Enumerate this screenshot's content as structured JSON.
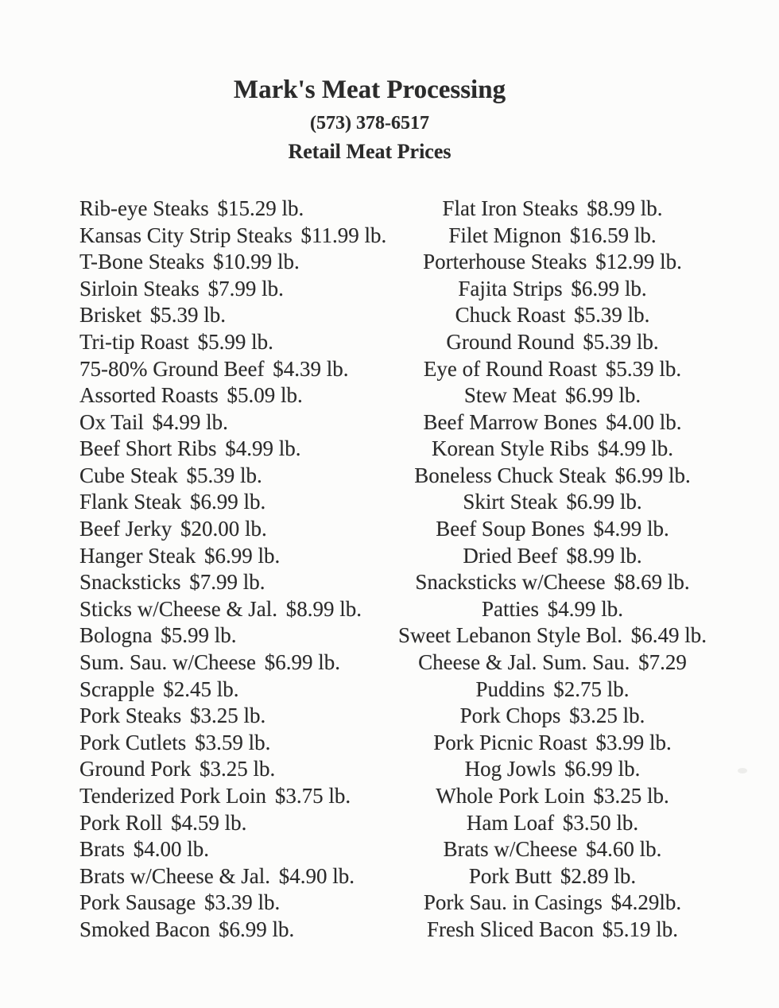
{
  "header": {
    "business_name": "Mark's Meat Processing",
    "phone": "(573) 378-6517",
    "subtitle": "Retail Meat Prices"
  },
  "price_list": {
    "left_column": [
      {
        "item": "Rib-eye Steaks",
        "price": "$15.29 lb."
      },
      {
        "item": "Kansas City Strip Steaks",
        "price": "$11.99 lb."
      },
      {
        "item": "T-Bone Steaks",
        "price": "$10.99 lb."
      },
      {
        "item": "Sirloin Steaks",
        "price": "$7.99 lb."
      },
      {
        "item": "Brisket",
        "price": "$5.39 lb."
      },
      {
        "item": "Tri-tip Roast",
        "price": "$5.99 lb."
      },
      {
        "item": "75-80% Ground Beef",
        "price": "$4.39 lb."
      },
      {
        "item": "Assorted Roasts",
        "price": "$5.09 lb."
      },
      {
        "item": "Ox Tail",
        "price": "$4.99 lb."
      },
      {
        "item": "Beef Short Ribs",
        "price": "$4.99 lb."
      },
      {
        "item": "Cube Steak",
        "price": "$5.39 lb."
      },
      {
        "item": "Flank Steak",
        "price": "$6.99 lb."
      },
      {
        "item": "Beef Jerky",
        "price": "$20.00 lb."
      },
      {
        "item": "Hanger Steak",
        "price": "$6.99 lb."
      },
      {
        "item": "Snacksticks",
        "price": "$7.99 lb."
      },
      {
        "item": "Sticks w/Cheese & Jal.",
        "price": "$8.99 lb."
      },
      {
        "item": "Bologna",
        "price": "$5.99 lb."
      },
      {
        "item": "Sum. Sau. w/Cheese",
        "price": "$6.99 lb."
      },
      {
        "item": "Scrapple",
        "price": "$2.45 lb."
      },
      {
        "item": "Pork Steaks",
        "price": "$3.25 lb."
      },
      {
        "item": "Pork Cutlets",
        "price": "$3.59 lb."
      },
      {
        "item": "Ground Pork",
        "price": "$3.25 lb."
      },
      {
        "item": "Tenderized Pork Loin",
        "price": "$3.75 lb."
      },
      {
        "item": "Pork Roll",
        "price": "$4.59 lb."
      },
      {
        "item": "Brats",
        "price": "$4.00 lb."
      },
      {
        "item": "Brats w/Cheese & Jal.",
        "price": "$4.90 lb."
      },
      {
        "item": "Pork Sausage",
        "price": "$3.39 lb."
      },
      {
        "item": "Smoked Bacon",
        "price": "$6.99 lb."
      }
    ],
    "right_column": [
      {
        "item": "Flat Iron Steaks",
        "price": "$8.99 lb."
      },
      {
        "item": "Filet Mignon",
        "price": "$16.59 lb."
      },
      {
        "item": "Porterhouse Steaks",
        "price": "$12.99 lb."
      },
      {
        "item": "Fajita Strips",
        "price": "$6.99 lb."
      },
      {
        "item": "Chuck Roast",
        "price": "$5.39 lb."
      },
      {
        "item": "Ground Round",
        "price": "$5.39 lb."
      },
      {
        "item": "Eye of Round Roast",
        "price": "$5.39 lb."
      },
      {
        "item": "Stew Meat",
        "price": "$6.99 lb."
      },
      {
        "item": "Beef Marrow Bones",
        "price": "$4.00 lb."
      },
      {
        "item": "Korean Style Ribs",
        "price": "$4.99 lb."
      },
      {
        "item": "Boneless Chuck Steak",
        "price": "$6.99 lb."
      },
      {
        "item": "Skirt Steak",
        "price": "$6.99 lb."
      },
      {
        "item": "Beef Soup Bones",
        "price": "$4.99 lb."
      },
      {
        "item": "Dried Beef",
        "price": "$8.99 lb."
      },
      {
        "item": "Snacksticks w/Cheese",
        "price": "$8.69 lb."
      },
      {
        "item": "Patties",
        "price": "$4.99 lb."
      },
      {
        "item": "Sweet Lebanon Style Bol.",
        "price": "$6.49 lb."
      },
      {
        "item": "Cheese & Jal. Sum. Sau.",
        "price": "$7.29"
      },
      {
        "item": "Puddins",
        "price": "$2.75 lb."
      },
      {
        "item": "Pork Chops",
        "price": "$3.25 lb."
      },
      {
        "item": "Pork Picnic Roast",
        "price": "$3.99 lb."
      },
      {
        "item": "Hog Jowls",
        "price": "$6.99 lb."
      },
      {
        "item": "Whole Pork Loin",
        "price": "$3.25 lb."
      },
      {
        "item": "Ham Loaf",
        "price": "$3.50 lb."
      },
      {
        "item": "Brats w/Cheese",
        "price": "$4.60 lb."
      },
      {
        "item": "Pork Butt",
        "price": "$2.89 lb."
      },
      {
        "item": "Pork Sau. in Casings",
        "price": "$4.29lb."
      },
      {
        "item": "Fresh Sliced Bacon",
        "price": "$5.19 lb."
      }
    ]
  },
  "colors": {
    "paper": "#fcfcfb",
    "ink": "#2b2b2b"
  }
}
